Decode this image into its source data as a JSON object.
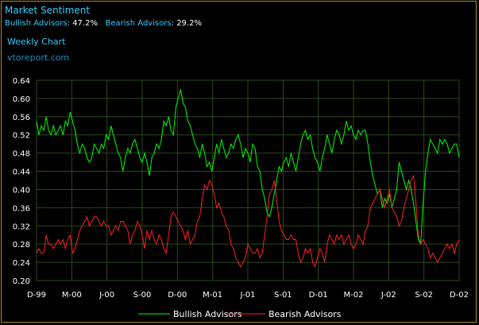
{
  "header": {
    "title": "Market Sentiment",
    "bullish_label": "Bullish Advisors:",
    "bullish_value": "47.2%",
    "bearish_label": "Bearish Advisors:",
    "bearish_value": "29.2%",
    "subtitle": "Weekly Chart",
    "site": "vtoreport.com"
  },
  "chart_data": {
    "type": "line",
    "ylim": [
      0.2,
      0.64
    ],
    "y_ticks": [
      "0.64",
      "0.60",
      "0.56",
      "0.52",
      "0.48",
      "0.44",
      "0.40",
      "0.36",
      "0.32",
      "0.28",
      "0.24",
      "0.20"
    ],
    "x_ticks": [
      "D-99",
      "M-00",
      "J-00",
      "S-00",
      "D-00",
      "M-01",
      "J-01",
      "S-01",
      "D-01",
      "M-02",
      "J-02",
      "S-02",
      "D-02"
    ],
    "grid": true,
    "legend_position": "bottom",
    "colors": {
      "bullish": "#00ff00",
      "bearish": "#ff2020",
      "grid": "#2a4a1a"
    },
    "series": [
      {
        "name": "Bullish Advisors",
        "values": [
          0.55,
          0.52,
          0.54,
          0.53,
          0.56,
          0.53,
          0.52,
          0.54,
          0.52,
          0.53,
          0.54,
          0.52,
          0.55,
          0.54,
          0.57,
          0.55,
          0.53,
          0.5,
          0.48,
          0.5,
          0.49,
          0.47,
          0.46,
          0.47,
          0.5,
          0.49,
          0.48,
          0.5,
          0.49,
          0.52,
          0.51,
          0.54,
          0.52,
          0.5,
          0.48,
          0.47,
          0.44,
          0.47,
          0.49,
          0.48,
          0.5,
          0.51,
          0.49,
          0.47,
          0.46,
          0.48,
          0.46,
          0.43,
          0.47,
          0.48,
          0.5,
          0.49,
          0.51,
          0.55,
          0.54,
          0.56,
          0.53,
          0.52,
          0.58,
          0.6,
          0.62,
          0.59,
          0.58,
          0.55,
          0.54,
          0.52,
          0.5,
          0.49,
          0.47,
          0.5,
          0.48,
          0.45,
          0.46,
          0.44,
          0.47,
          0.5,
          0.48,
          0.51,
          0.49,
          0.47,
          0.48,
          0.5,
          0.49,
          0.51,
          0.52,
          0.5,
          0.47,
          0.49,
          0.48,
          0.46,
          0.5,
          0.49,
          0.45,
          0.44,
          0.4,
          0.38,
          0.35,
          0.34,
          0.36,
          0.39,
          0.42,
          0.45,
          0.44,
          0.46,
          0.47,
          0.45,
          0.48,
          0.46,
          0.44,
          0.47,
          0.5,
          0.52,
          0.53,
          0.51,
          0.52,
          0.49,
          0.47,
          0.46,
          0.44,
          0.47,
          0.49,
          0.52,
          0.5,
          0.48,
          0.51,
          0.53,
          0.52,
          0.5,
          0.52,
          0.55,
          0.53,
          0.54,
          0.52,
          0.51,
          0.53,
          0.52,
          0.53,
          0.53,
          0.5,
          0.46,
          0.43,
          0.41,
          0.39,
          0.4,
          0.36,
          0.38,
          0.37,
          0.39,
          0.36,
          0.38,
          0.4,
          0.46,
          0.44,
          0.42,
          0.4,
          0.42,
          0.4,
          0.37,
          0.33,
          0.29,
          0.28,
          0.37,
          0.44,
          0.48,
          0.51,
          0.5,
          0.49,
          0.48,
          0.51,
          0.5,
          0.51,
          0.5,
          0.48,
          0.49,
          0.5,
          0.5,
          0.47
        ]
      },
      {
        "name": "Bearish Advisors",
        "values": [
          0.26,
          0.27,
          0.26,
          0.26,
          0.3,
          0.28,
          0.28,
          0.27,
          0.28,
          0.29,
          0.28,
          0.29,
          0.27,
          0.29,
          0.3,
          0.26,
          0.27,
          0.29,
          0.31,
          0.32,
          0.33,
          0.34,
          0.32,
          0.33,
          0.34,
          0.34,
          0.33,
          0.32,
          0.33,
          0.32,
          0.32,
          0.3,
          0.31,
          0.32,
          0.31,
          0.33,
          0.33,
          0.32,
          0.31,
          0.28,
          0.3,
          0.31,
          0.33,
          0.32,
          0.3,
          0.27,
          0.31,
          0.29,
          0.31,
          0.29,
          0.28,
          0.3,
          0.29,
          0.27,
          0.26,
          0.3,
          0.34,
          0.35,
          0.34,
          0.33,
          0.32,
          0.31,
          0.29,
          0.31,
          0.28,
          0.29,
          0.3,
          0.33,
          0.34,
          0.38,
          0.41,
          0.4,
          0.42,
          0.41,
          0.39,
          0.36,
          0.37,
          0.35,
          0.34,
          0.32,
          0.31,
          0.28,
          0.27,
          0.25,
          0.24,
          0.23,
          0.24,
          0.25,
          0.28,
          0.27,
          0.26,
          0.26,
          0.27,
          0.25,
          0.26,
          0.3,
          0.34,
          0.39,
          0.4,
          0.42,
          0.38,
          0.33,
          0.31,
          0.3,
          0.29,
          0.29,
          0.3,
          0.29,
          0.29,
          0.26,
          0.24,
          0.25,
          0.27,
          0.26,
          0.27,
          0.24,
          0.23,
          0.25,
          0.27,
          0.26,
          0.24,
          0.28,
          0.3,
          0.29,
          0.28,
          0.3,
          0.29,
          0.3,
          0.28,
          0.29,
          0.3,
          0.28,
          0.27,
          0.28,
          0.3,
          0.29,
          0.28,
          0.31,
          0.32,
          0.36,
          0.37,
          0.38,
          0.39,
          0.4,
          0.38,
          0.36,
          0.38,
          0.4,
          0.36,
          0.35,
          0.34,
          0.32,
          0.33,
          0.36,
          0.38,
          0.4,
          0.42,
          0.43,
          0.37,
          0.3,
          0.28,
          0.29,
          0.28,
          0.27,
          0.25,
          0.26,
          0.25,
          0.24,
          0.25,
          0.26,
          0.27,
          0.28,
          0.27,
          0.28,
          0.26,
          0.28,
          0.29
        ]
      }
    ]
  }
}
